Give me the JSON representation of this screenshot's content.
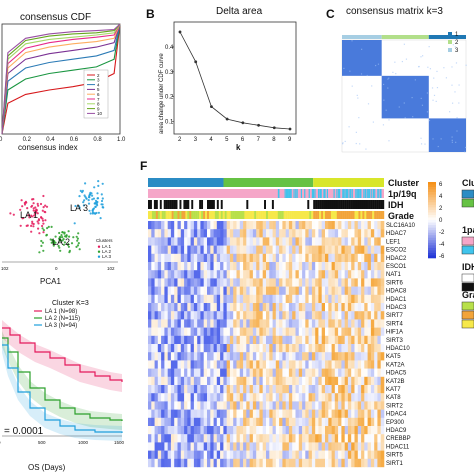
{
  "panels": {
    "A": {
      "letter": "",
      "title": "consensus CDF",
      "xlabel": "consensus index",
      "x_ticks": [
        "0",
        "0.2",
        "0.4",
        "0.6",
        "0.8",
        "1.0"
      ],
      "legend": [
        "2",
        "3",
        "4",
        "5",
        "6",
        "7",
        "8",
        "9",
        "10"
      ],
      "colors": [
        "#d7191c",
        "#1a9641",
        "#2c7bb6",
        "#7b3294",
        "#fdae61",
        "#e7298a",
        "#a6d96a",
        "#66a61e",
        "#984ea3"
      ]
    },
    "B": {
      "letter": "B",
      "title": "Delta area",
      "xlabel": "k",
      "ylabel": "area change under CDF curve",
      "x_ticks": [
        "2",
        "3",
        "4",
        "5",
        "6",
        "7",
        "8",
        "9"
      ],
      "y_ticks": [
        "0.1",
        "0.2",
        "0.3",
        "0.4"
      ]
    },
    "C": {
      "letter": "C",
      "title": "consensus matrix k=3",
      "legend": [
        "1",
        "2",
        "3"
      ],
      "colors": [
        "#1f78b4",
        "#b2df8a",
        "#a6cee3"
      ]
    },
    "D": {
      "labels": [
        "LA 1",
        "LA 3",
        "LA 2"
      ],
      "xlabel": "PCA1",
      "x_ticks": [
        "102",
        "0",
        "102"
      ],
      "legend_title": "Clusters",
      "legend": [
        "LA 1",
        "LA 2",
        "LA 3"
      ],
      "colors": [
        "#e41a5c",
        "#2ca02c",
        "#1f9fdc"
      ]
    },
    "E": {
      "legend_title": "Cluster K=3",
      "legend": [
        "LA 1 (N=98)",
        "LA 2 (N=115)",
        "LA 3 (N=94)"
      ],
      "pvalue": "= 0.0001",
      "xlabel": "OS (Days)",
      "x_ticks": [
        "0",
        "500",
        "1000",
        "1500"
      ],
      "colors": [
        "#e41a5c",
        "#2ca02c",
        "#1f9fdc"
      ]
    },
    "F": {
      "letter": "F",
      "tracks": [
        "Cluster",
        "1p/19q",
        "IDH",
        "Grade"
      ],
      "genes": [
        "SLC16A10",
        "HDAC7",
        "LEF1",
        "ESCO2",
        "HDAC2",
        "ESCO1",
        "NAT1",
        "SIRT6",
        "HDAC8",
        "HDAC1",
        "HDAC3",
        "SIRT7",
        "SIRT4",
        "HIF1A",
        "SIRT3",
        "HDAC10",
        "KAT5",
        "KAT2A",
        "HDAC5",
        "KAT2B",
        "KAT7",
        "KAT8",
        "SIRT2",
        "HDAC4",
        "EP300",
        "HDAC9",
        "CREBBP",
        "HDAC11",
        "SIRT5",
        "SIRT1"
      ],
      "scale_ticks": [
        "6",
        "4",
        "2",
        "0",
        "-2",
        "-4",
        "-6"
      ],
      "right_legend": [
        "Clu",
        "1pa",
        "IDH",
        "Gra"
      ]
    }
  },
  "chart_data": [
    {
      "type": "line",
      "title": "consensus CDF",
      "xlabel": "consensus index",
      "ylabel": "",
      "xlim": [
        0,
        1
      ],
      "ylim": [
        0,
        1
      ],
      "series": [
        {
          "name": "2",
          "x": [
            0,
            0.05,
            0.2,
            0.4,
            0.6,
            0.8,
            0.95,
            1
          ],
          "values": [
            0,
            0.28,
            0.36,
            0.4,
            0.43,
            0.47,
            0.55,
            1
          ]
        },
        {
          "name": "3",
          "x": [
            0,
            0.05,
            0.2,
            0.4,
            0.6,
            0.8,
            0.95,
            1
          ],
          "values": [
            0,
            0.4,
            0.5,
            0.55,
            0.58,
            0.61,
            0.68,
            1
          ]
        },
        {
          "name": "4",
          "x": [
            0,
            0.05,
            0.2,
            0.4,
            0.6,
            0.8,
            0.95,
            1
          ],
          "values": [
            0,
            0.48,
            0.6,
            0.65,
            0.68,
            0.71,
            0.76,
            1
          ]
        },
        {
          "name": "5",
          "x": [
            0,
            0.05,
            0.2,
            0.4,
            0.6,
            0.8,
            0.95,
            1
          ],
          "values": [
            0,
            0.55,
            0.68,
            0.73,
            0.76,
            0.79,
            0.83,
            1
          ]
        },
        {
          "name": "6",
          "x": [
            0,
            0.05,
            0.2,
            0.4,
            0.6,
            0.8,
            0.95,
            1
          ],
          "values": [
            0,
            0.6,
            0.74,
            0.79,
            0.82,
            0.84,
            0.87,
            1
          ]
        },
        {
          "name": "7",
          "x": [
            0,
            0.05,
            0.2,
            0.4,
            0.6,
            0.8,
            0.95,
            1
          ],
          "values": [
            0,
            0.64,
            0.78,
            0.83,
            0.86,
            0.88,
            0.9,
            1
          ]
        },
        {
          "name": "8",
          "x": [
            0,
            0.05,
            0.2,
            0.4,
            0.6,
            0.8,
            0.95,
            1
          ],
          "values": [
            0,
            0.68,
            0.82,
            0.86,
            0.88,
            0.9,
            0.92,
            1
          ]
        },
        {
          "name": "9",
          "x": [
            0,
            0.05,
            0.2,
            0.4,
            0.6,
            0.8,
            0.95,
            1
          ],
          "values": [
            0,
            0.71,
            0.85,
            0.89,
            0.91,
            0.92,
            0.94,
            1
          ]
        },
        {
          "name": "10",
          "x": [
            0,
            0.05,
            0.2,
            0.4,
            0.6,
            0.8,
            0.95,
            1
          ],
          "values": [
            0,
            0.74,
            0.87,
            0.91,
            0.93,
            0.94,
            0.95,
            1
          ]
        }
      ]
    },
    {
      "type": "line",
      "title": "Delta area",
      "xlabel": "k",
      "ylabel": "area change under CDF curve",
      "xlim": [
        2,
        9
      ],
      "ylim": [
        0.05,
        0.5
      ],
      "x": [
        2,
        3,
        4,
        5,
        6,
        7,
        8,
        9
      ],
      "values": [
        0.46,
        0.34,
        0.16,
        0.11,
        0.095,
        0.085,
        0.075,
        0.07
      ]
    },
    {
      "type": "heatmap",
      "title": "consensus matrix k=3",
      "cluster_fractions": [
        0.32,
        0.38,
        0.3
      ]
    }
  ]
}
